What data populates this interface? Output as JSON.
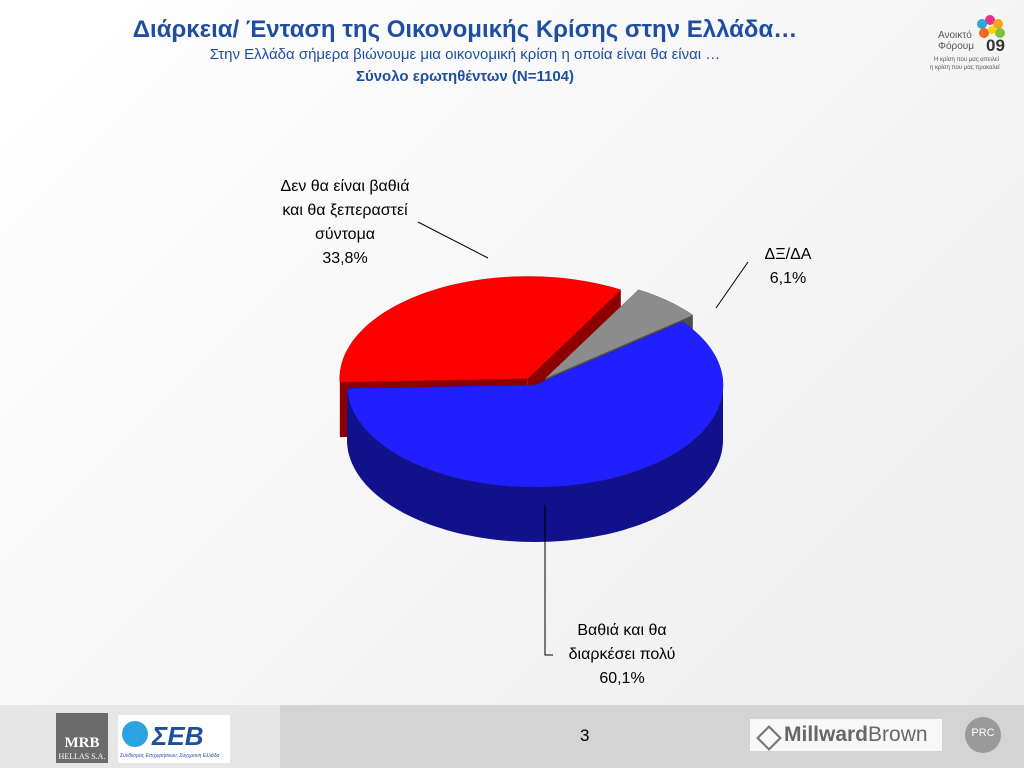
{
  "header": {
    "title": "Διάρκεια/ Ένταση της Οικονομικής Κρίσης στην Ελλάδα…",
    "subtitle": "Στην Ελλάδα σήμερα βιώνουμε μια οικονομική κρίση η οποία είναι θα είναι …",
    "base": "Σύνολο ερωτηθέντων (N=1104)"
  },
  "logos": {
    "forum_top": "Ανοικτό",
    "forum_mid": "Φόρουμ",
    "forum_year": "09",
    "forum_tag1": "Η κρίση που μας απειλεί",
    "forum_tag2": "η κρίση που μας προκαλεί",
    "mrb": "MRB",
    "mrb_sub": "HELLAS S.A.",
    "seb": "ΣΕΒ",
    "seb_sub": "Σύνδεσμος Επιχειρήσεων, Σύγχρονη Ελλάδα",
    "millward": "Millward",
    "brown": "Brown",
    "prc": "PRC"
  },
  "footer": {
    "page": "3"
  },
  "chart_data": {
    "type": "pie",
    "categories": [
      "Δεν θα είναι βαθιά\nκαι θα ξεπεραστεί\nσύντομα",
      "ΔΞ/ΔΑ",
      "Βαθιά και θα\nδιαρκέσει πολύ"
    ],
    "values": [
      33.8,
      6.1,
      60.1
    ],
    "value_labels": [
      "33,8%",
      "6,1%",
      "60,1%"
    ],
    "colors": [
      "#ff0000",
      "#8c8c8c",
      "#1f1fff"
    ]
  }
}
